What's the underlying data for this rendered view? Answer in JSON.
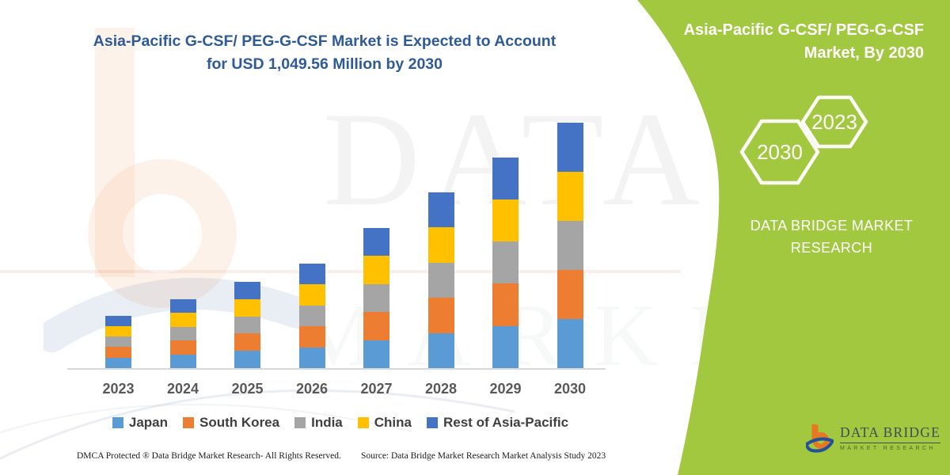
{
  "title": {
    "line1": "Asia-Pacific G-CSF/ PEG-G-CSF Market is Expected to Account",
    "line2": "for USD 1,049.56 Million by 2030"
  },
  "side_panel": {
    "heading_line1": "Asia-Pacific G-CSF/ PEG-G-CSF",
    "heading_line2": "Market, By 2030",
    "hexagon_large_label": "2030",
    "hexagon_small_label": "2023",
    "brand_line1": "DATA BRIDGE MARKET",
    "brand_line2": "RESEARCH",
    "panel_color": "#a2c83f"
  },
  "chart_data": {
    "type": "bar",
    "stacked": true,
    "title": "Asia-Pacific G-CSF/ PEG-G-CSF Market, USD Million",
    "categories": [
      "2023",
      "2024",
      "2025",
      "2026",
      "2027",
      "2028",
      "2029",
      "2030"
    ],
    "series": [
      {
        "name": "Japan",
        "color": "#5B9BD5",
        "values": [
          44.88,
          58.88,
          73.96,
          89.52,
          120.24,
          150.4,
          180.44,
          209.91
        ]
      },
      {
        "name": "South Korea",
        "color": "#ED7D31",
        "values": [
          44.88,
          58.88,
          73.96,
          89.52,
          120.24,
          150.4,
          180.44,
          209.91
        ]
      },
      {
        "name": "India",
        "color": "#A5A5A5",
        "values": [
          44.88,
          58.88,
          73.96,
          89.52,
          120.24,
          150.4,
          180.44,
          209.91
        ]
      },
      {
        "name": "China",
        "color": "#FFC000",
        "values": [
          44.88,
          58.88,
          73.96,
          89.52,
          120.24,
          150.4,
          180.44,
          209.91
        ]
      },
      {
        "name": "Rest of Asia-Pacific",
        "color": "#4472C4",
        "values": [
          44.88,
          58.88,
          73.96,
          89.52,
          120.24,
          150.4,
          180.44,
          209.92
        ]
      }
    ],
    "totals": [
      224.4,
      294.4,
      369.8,
      447.6,
      601.2,
      752.0,
      902.2,
      1049.56
    ],
    "value_unit": "USD Million",
    "ylim": [
      0,
      1100
    ],
    "gridlines": false,
    "legend_position": "bottom",
    "xlabel": "",
    "ylabel": ""
  },
  "footer": {
    "left": "DMCA Protected ® Data Bridge Market Research-  All Rights Reserved.",
    "source": "Source: Data Bridge Market Research  Market Analysis Study 2023"
  },
  "logo": {
    "name": "DATA BRIDGE",
    "subtext": "MARKET RESEARCH"
  },
  "watermark": {
    "text1": "DATA BRIDGE",
    "text2": "MARKET RESEARCH"
  },
  "colors": {
    "title_blue": "#2e5b97",
    "axis_line": "#d9d9d9",
    "label_gray": "#595959",
    "panel_green": "#a2c83f"
  }
}
